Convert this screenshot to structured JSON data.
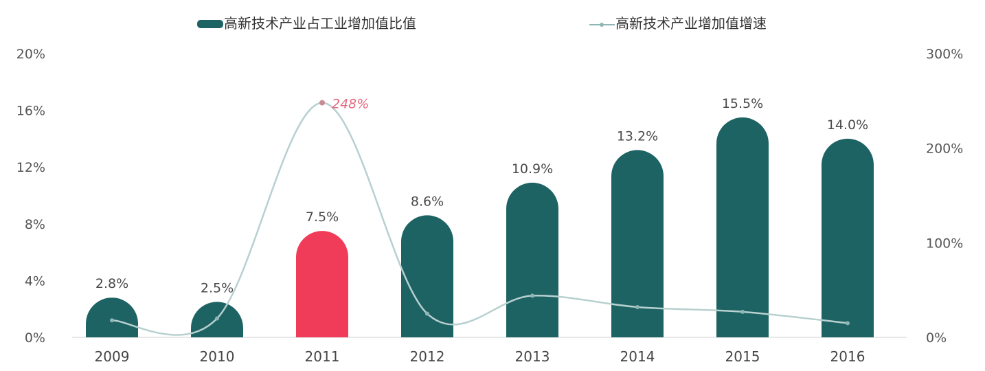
{
  "chart_data": {
    "type": "bar",
    "categories": [
      "2009",
      "2010",
      "2011",
      "2012",
      "2013",
      "2014",
      "2015",
      "2016"
    ],
    "series": [
      {
        "name": "高新技术产业占工业增加值比值",
        "type": "bar",
        "axis": "left",
        "values": [
          2.8,
          2.5,
          7.5,
          8.6,
          10.9,
          13.2,
          15.5,
          14.0
        ],
        "labels": [
          "2.8%",
          "2.5%",
          "7.5%",
          "8.6%",
          "10.9%",
          "13.2%",
          "15.5%",
          "14.0%"
        ],
        "highlight_index": 2
      },
      {
        "name": "高新技术产业增加值增速",
        "type": "line",
        "axis": "right",
        "values": [
          18,
          20,
          248,
          25,
          44,
          32,
          27,
          15
        ],
        "labels": [
          "",
          "",
          "248%",
          "",
          "",
          "",
          "",
          ""
        ]
      }
    ],
    "y_left": {
      "ticks": [
        "0%",
        "4%",
        "8%",
        "12%",
        "16%",
        "20%"
      ],
      "range": [
        0,
        20
      ]
    },
    "y_right": {
      "ticks": [
        "0%",
        "100%",
        "200%",
        "300%"
      ],
      "range": [
        0,
        300
      ]
    },
    "legend_position": "top",
    "grid": false
  },
  "colors": {
    "bar": "#1e6363",
    "bar_highlight": "#f03c58",
    "line": "#b8d0d0",
    "line_marker": "#8fb5b5",
    "highlight_label": "#e56a80",
    "baseline": "#e8e8e8"
  }
}
